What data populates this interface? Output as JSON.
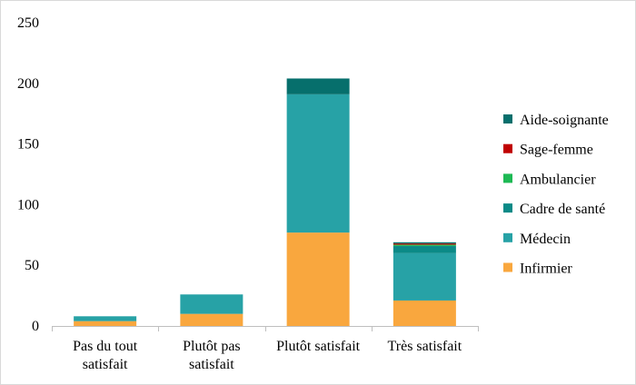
{
  "chart_data": {
    "type": "bar",
    "stacked": true,
    "categories": [
      [
        "Pas du tout",
        "satisfait"
      ],
      [
        "Plutôt pas",
        "satisfait"
      ],
      [
        "Plutôt satisfait"
      ],
      [
        "Très satisfait"
      ]
    ],
    "series": [
      {
        "name": "Infirmier",
        "color": "#f9a73e",
        "values": [
          4,
          10,
          77,
          21
        ]
      },
      {
        "name": "Médecin",
        "color": "#27a2a6",
        "values": [
          4,
          16,
          114,
          39
        ]
      },
      {
        "name": "Cadre de santé",
        "color": "#0b8a87",
        "values": [
          0,
          0,
          0,
          6
        ]
      },
      {
        "name": "Ambulancier",
        "color": "#1db954",
        "values": [
          0,
          0,
          0,
          1
        ]
      },
      {
        "name": "Sage-femme",
        "color": "#c00000",
        "values": [
          0,
          0,
          0,
          1
        ]
      },
      {
        "name": "Aide-soignante",
        "color": "#066f6c",
        "values": [
          0,
          0,
          13,
          1
        ]
      }
    ],
    "ylim": [
      0,
      250
    ],
    "yticks": [
      0,
      50,
      100,
      150,
      200,
      250
    ],
    "grid": false,
    "legend_position": "right"
  }
}
